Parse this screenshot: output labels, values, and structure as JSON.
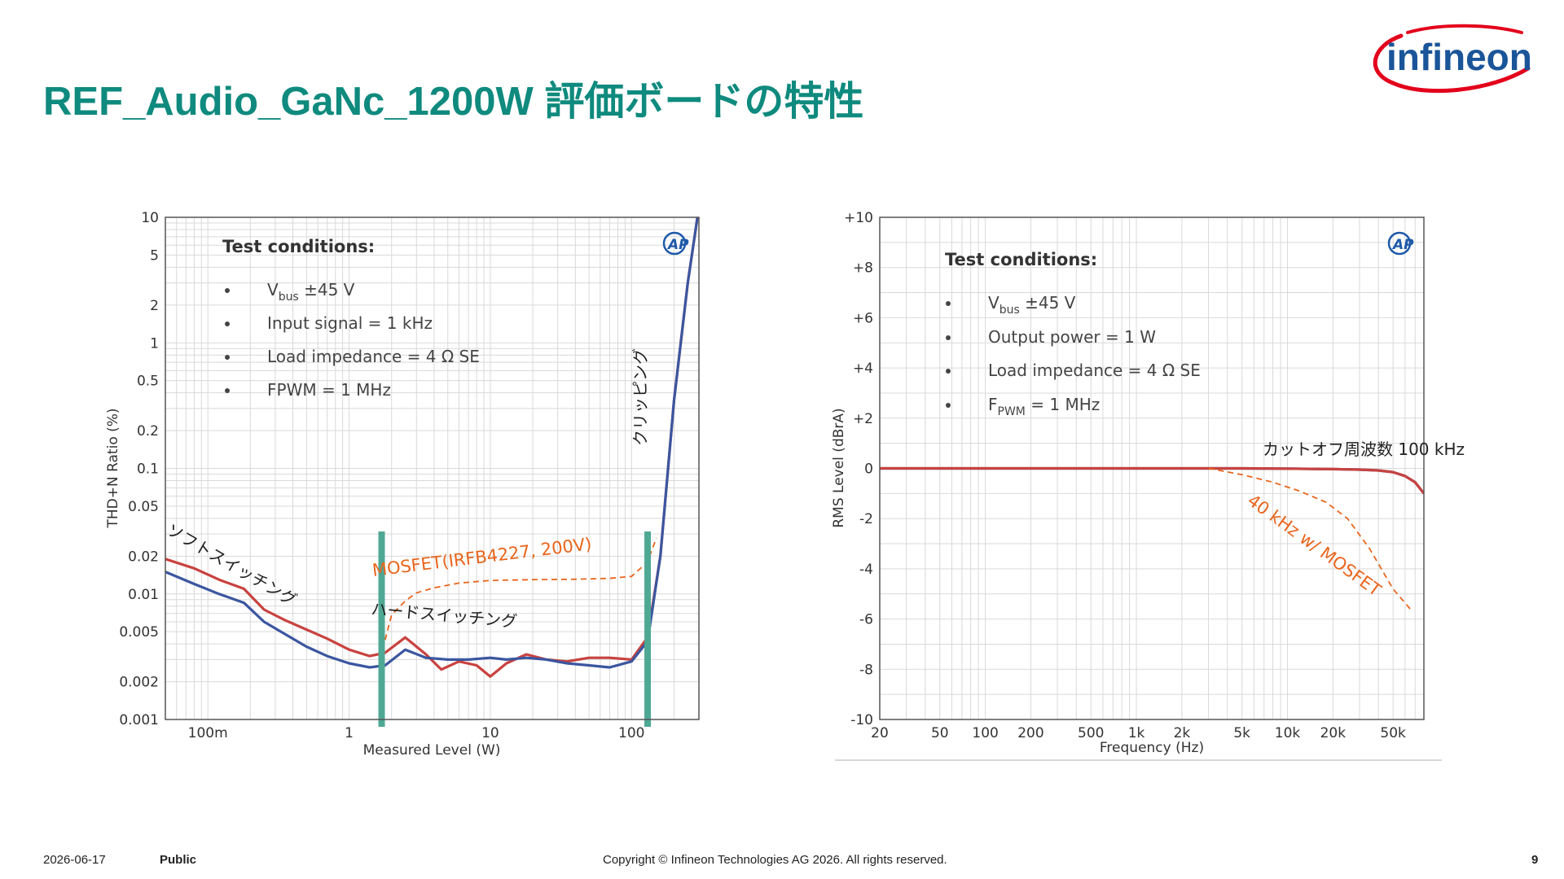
{
  "slide": {
    "title": "REF_Audio_GaNc_1200W 評価ボードの特性",
    "logo_text": "infineon",
    "footer": {
      "date": "2026-06-17",
      "classification": "Public",
      "copyright": "Copyright © Infineon Technologies AG 2026. All rights reserved.",
      "page_number": "9"
    }
  },
  "colors": {
    "title": "#0f8a7e",
    "logo_text": "#1a5599",
    "logo_swoosh": "#e3001b",
    "series_red": "#c8423f",
    "series_blue": "#3b56a0",
    "annotation_orange": "#e8651c",
    "marker_teal": "#4fa894",
    "grid": "#d9d9d9"
  },
  "chart_data": [
    {
      "type": "line",
      "xlabel": "Measured Level (W)",
      "ylabel": "THD+N Ratio (%)",
      "x_scale": "log",
      "y_scale": "log",
      "xlim": [
        0.05,
        300
      ],
      "ylim": [
        0.001,
        10
      ],
      "x_ticks": [
        0.1,
        1,
        10,
        100
      ],
      "x_tick_labels": [
        "100m",
        "1",
        "10",
        "100"
      ],
      "y_ticks": [
        0.001,
        0.002,
        0.005,
        0.01,
        0.02,
        0.05,
        0.1,
        0.2,
        0.5,
        1,
        2,
        5,
        10
      ],
      "y_tick_labels": [
        "0.001",
        "0.002",
        "0.005",
        "0.01",
        "0.02",
        "0.05",
        "0.1",
        "0.2",
        "0.5",
        "1",
        "2",
        "5",
        "10"
      ],
      "grid": true,
      "badge": "AP",
      "series": [
        {
          "color": "#c8423f",
          "x": [
            0.05,
            0.08,
            0.12,
            0.18,
            0.25,
            0.35,
            0.5,
            0.7,
            1.0,
            1.4,
            1.8,
            2.5,
            3.5,
            4.5,
            6,
            8,
            10,
            13,
            18,
            25,
            35,
            50,
            70,
            100,
            130,
            160,
            200,
            250,
            300
          ],
          "y": [
            0.019,
            0.016,
            0.013,
            0.011,
            0.0075,
            0.0062,
            0.0052,
            0.0044,
            0.0036,
            0.0032,
            0.0034,
            0.0045,
            0.0033,
            0.0025,
            0.0029,
            0.0027,
            0.0022,
            0.0028,
            0.0033,
            0.003,
            0.0029,
            0.0031,
            0.0031,
            0.003,
            0.0045,
            0.02,
            0.35,
            3,
            12
          ]
        },
        {
          "color": "#3b56a0",
          "x": [
            0.05,
            0.08,
            0.12,
            0.18,
            0.25,
            0.35,
            0.5,
            0.7,
            1.0,
            1.4,
            1.8,
            2.5,
            3.5,
            5,
            7,
            10,
            13,
            18,
            25,
            35,
            50,
            70,
            100,
            130,
            160,
            200,
            250,
            300
          ],
          "y": [
            0.015,
            0.012,
            0.01,
            0.0085,
            0.006,
            0.0048,
            0.0038,
            0.0032,
            0.0028,
            0.0026,
            0.0027,
            0.0036,
            0.0031,
            0.003,
            0.003,
            0.0031,
            0.003,
            0.0031,
            0.003,
            0.0028,
            0.0027,
            0.0026,
            0.0029,
            0.0042,
            0.02,
            0.35,
            3,
            12
          ]
        },
        {
          "name": "MOSFET(IRFB4227, 200V)",
          "style": "dashed",
          "color": "#e8651c",
          "x": [
            1.8,
            2.0,
            2.5,
            3,
            4,
            6,
            10,
            20,
            40,
            70,
            100,
            130,
            150
          ],
          "y": [
            0.0043,
            0.0068,
            0.0088,
            0.0102,
            0.0112,
            0.0122,
            0.0128,
            0.013,
            0.0131,
            0.0133,
            0.0138,
            0.018,
            0.028
          ]
        }
      ],
      "vertical_markers_x": [
        1.7,
        130
      ],
      "annotations": {
        "test_conditions_title": "Test conditions:",
        "conditions": [
          {
            "main": "V",
            "sub": "bus",
            "rest": " ±45 V"
          },
          {
            "main": "Input signal = 1 kHz",
            "sub": "",
            "rest": ""
          },
          {
            "main": "Load impedance = 4 Ω SE",
            "sub": "",
            "rest": ""
          },
          {
            "main": "FPWM = 1 MHz",
            "sub": "",
            "rest": ""
          }
        ],
        "soft_switching": "ソフトスイッチング",
        "hard_switching": "ハードスイッチング",
        "clipping": "クリッピング",
        "mosfet": "MOSFET(IRFB4227, 200V)"
      }
    },
    {
      "type": "line",
      "xlabel": "Frequency (Hz)",
      "ylabel": "RMS Level (dBrA)",
      "x_scale": "log",
      "xlim": [
        20,
        80000
      ],
      "ylim": [
        -10,
        10
      ],
      "x_ticks": [
        20,
        50,
        100,
        200,
        500,
        1000,
        2000,
        5000,
        10000,
        20000,
        50000
      ],
      "x_tick_labels": [
        "20",
        "50",
        "100",
        "200",
        "500",
        "1k",
        "2k",
        "5k",
        "10k",
        "20k",
        "50k"
      ],
      "y_ticks": [
        10,
        8,
        6,
        4,
        2,
        0,
        -2,
        -4,
        -6,
        -8,
        -10
      ],
      "y_tick_labels": [
        "+10",
        "+8",
        "+6",
        "+4",
        "+2",
        "0",
        "-2",
        "-4",
        "-6",
        "-8",
        "-10"
      ],
      "grid": true,
      "badge": "AP",
      "series": [
        {
          "color": "#3b56a0",
          "x": [
            20,
            100,
            1000,
            5000,
            10000,
            20000,
            30000,
            40000,
            50000,
            60000,
            70000,
            80000
          ],
          "y": [
            0,
            0,
            0,
            0,
            -0.01,
            -0.03,
            -0.05,
            -0.08,
            -0.15,
            -0.3,
            -0.55,
            -1.0
          ]
        },
        {
          "color": "#c8423f",
          "x": [
            20,
            100,
            1000,
            5000,
            10000,
            20000,
            30000,
            40000,
            50000,
            60000,
            70000,
            80000
          ],
          "y": [
            0,
            0,
            0,
            0,
            -0.01,
            -0.03,
            -0.05,
            -0.08,
            -0.15,
            -0.3,
            -0.55,
            -1.0
          ]
        },
        {
          "name": "40 kHz w/ MOSFET",
          "style": "dashed",
          "color": "#e8651c",
          "x": [
            3000,
            5000,
            8000,
            12000,
            18000,
            25000,
            35000,
            50000,
            65000
          ],
          "y": [
            0,
            -0.25,
            -0.55,
            -0.9,
            -1.35,
            -2.0,
            -3.2,
            -4.8,
            -5.6
          ]
        }
      ],
      "annotations": {
        "test_conditions_title": "Test conditions:",
        "conditions": [
          {
            "main": "V",
            "sub": "bus",
            "rest": " ±45 V"
          },
          {
            "main": "Output power = 1 W",
            "sub": "",
            "rest": ""
          },
          {
            "main": "Load impedance = 4 Ω SE",
            "sub": "",
            "rest": ""
          },
          {
            "main": "F",
            "sub": "PWM",
            "rest": " = 1 MHz"
          }
        ],
        "cutoff": "カットオフ周波数 100 kHz",
        "mosfet": "40 kHz w/ MOSFET"
      }
    }
  ]
}
